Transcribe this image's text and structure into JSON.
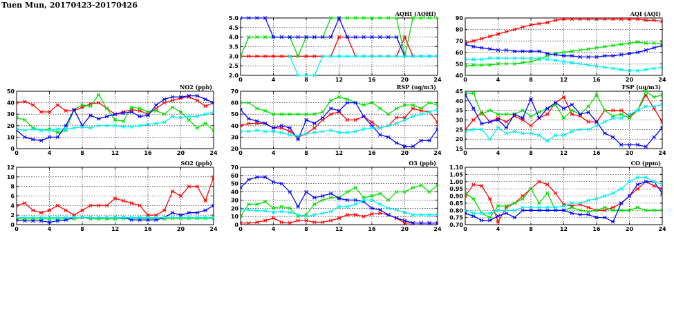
{
  "page_title": "Tuen Mun, 20170423-20170426",
  "colors": {
    "red": "#ff0000",
    "green": "#00dd00",
    "blue": "#0000ff",
    "cyan": "#00eeee"
  },
  "chart_data": [
    {
      "id": "aqhi",
      "type": "line",
      "title": "AQHI (AQHI)",
      "xlim": [
        0,
        24
      ],
      "xticks": [
        0,
        4,
        8,
        12,
        16,
        20,
        24
      ],
      "ylim": [
        2.0,
        5.0
      ],
      "yticks": [
        "2.0",
        "2.5",
        "3.0",
        "3.5",
        "4.0",
        "4.5",
        "5.0"
      ],
      "grid": true,
      "series": [
        {
          "color": "red",
          "values": [
            3,
            3,
            3,
            3,
            3,
            3,
            3,
            3,
            3,
            3,
            3,
            3,
            4,
            4,
            3,
            3,
            3,
            3,
            3,
            3,
            4,
            3,
            3,
            3,
            3
          ]
        },
        {
          "color": "green",
          "values": [
            3,
            4,
            4,
            4,
            4,
            4,
            4,
            3,
            4,
            4,
            4,
            5,
            5,
            5,
            5,
            5,
            5,
            5,
            5,
            5,
            3,
            5,
            5,
            5,
            5
          ]
        },
        {
          "color": "blue",
          "values": [
            5,
            5,
            5,
            5,
            4,
            4,
            4,
            4,
            4,
            4,
            4,
            4,
            5,
            4,
            4,
            4,
            4,
            4,
            4,
            4,
            3,
            3,
            3,
            3,
            3
          ]
        },
        {
          "color": "cyan",
          "values": [
            null,
            null,
            null,
            null,
            null,
            null,
            3,
            2,
            2,
            2,
            3,
            3,
            3,
            3,
            3,
            3,
            3,
            3,
            3,
            3,
            3,
            3,
            3,
            3,
            3
          ]
        }
      ]
    },
    {
      "id": "aqi",
      "type": "line",
      "title": "AQI (AQI)",
      "xlim": [
        0,
        24
      ],
      "xticks": [
        0,
        4,
        8,
        12,
        16,
        20,
        24
      ],
      "ylim": [
        40,
        90
      ],
      "yticks": [
        "40",
        "50",
        "60",
        "70",
        "80",
        "90"
      ],
      "grid": true,
      "series": [
        {
          "color": "red",
          "values": [
            68,
            70,
            72,
            74,
            76,
            78,
            80,
            82,
            84,
            85,
            86,
            88,
            89,
            89,
            89,
            89,
            89,
            89,
            89,
            89,
            89,
            89,
            88,
            88,
            87
          ]
        },
        {
          "color": "green",
          "values": [
            48,
            49,
            49,
            49,
            50,
            50,
            50,
            51,
            52,
            54,
            57,
            59,
            60,
            61,
            62,
            63,
            64,
            65,
            66,
            67,
            68,
            69,
            68,
            68,
            68
          ]
        },
        {
          "color": "blue",
          "values": [
            67,
            65,
            64,
            63,
            62,
            62,
            61,
            61,
            61,
            61,
            59,
            58,
            57,
            57,
            56,
            56,
            56,
            57,
            57,
            58,
            59,
            60,
            62,
            64,
            66
          ]
        },
        {
          "color": "cyan",
          "values": [
            54,
            54,
            54,
            55,
            55,
            55,
            55,
            55,
            55,
            55,
            54,
            53,
            52,
            51,
            50,
            49,
            48,
            47,
            46,
            45,
            44,
            44,
            45,
            46,
            47
          ]
        }
      ]
    },
    {
      "id": "no2",
      "type": "line",
      "title": "NO2 (ppb)",
      "xlim": [
        0,
        24
      ],
      "xticks": [
        0,
        4,
        8,
        12,
        16,
        20,
        24
      ],
      "ylim": [
        0,
        50
      ],
      "yticks": [
        "0",
        "10",
        "20",
        "30",
        "40",
        "50"
      ],
      "grid": true,
      "series": [
        {
          "color": "red",
          "values": [
            40,
            41,
            38,
            32,
            32,
            38,
            33,
            33,
            36,
            39,
            40,
            35,
            30,
            32,
            34,
            33,
            30,
            35,
            40,
            42,
            44,
            45,
            42,
            37,
            40
          ]
        },
        {
          "color": "green",
          "values": [
            27,
            25,
            18,
            16,
            17,
            14,
            16,
            34,
            38,
            37,
            47,
            35,
            25,
            24,
            36,
            35,
            32,
            33,
            30,
            36,
            32,
            25,
            18,
            22,
            16
          ]
        },
        {
          "color": "blue",
          "values": [
            16,
            10,
            8,
            7,
            10,
            10,
            20,
            34,
            20,
            29,
            26,
            28,
            30,
            31,
            32,
            28,
            29,
            38,
            43,
            45,
            45,
            46,
            46,
            43,
            40
          ]
        },
        {
          "color": "cyan",
          "values": [
            17,
            16,
            17,
            16,
            16,
            17,
            17,
            18,
            19,
            18,
            20,
            20,
            20,
            19,
            19,
            20,
            21,
            22,
            23,
            28,
            27,
            28,
            28,
            30,
            32
          ]
        }
      ]
    },
    {
      "id": "rsp",
      "type": "line",
      "title": "RSP (ug/m3)",
      "xlim": [
        0,
        24
      ],
      "xticks": [
        0,
        4,
        8,
        12,
        16,
        20,
        24
      ],
      "ylim": [
        20,
        70
      ],
      "yticks": [
        "20",
        "30",
        "40",
        "50",
        "60",
        "70"
      ],
      "grid": true,
      "series": [
        {
          "color": "red",
          "values": [
            40,
            42,
            42,
            42,
            38,
            38,
            35,
            30,
            33,
            38,
            45,
            50,
            52,
            45,
            45,
            48,
            43,
            38,
            40,
            47,
            47,
            55,
            53,
            52,
            43
          ]
        },
        {
          "color": "green",
          "values": [
            60,
            60,
            55,
            53,
            50,
            50,
            50,
            50,
            50,
            50,
            52,
            62,
            65,
            63,
            60,
            58,
            60,
            55,
            50,
            55,
            58,
            58,
            55,
            60,
            58
          ]
        },
        {
          "color": "blue",
          "values": [
            54,
            46,
            44,
            42,
            38,
            40,
            38,
            28,
            45,
            42,
            47,
            55,
            53,
            60,
            60,
            48,
            40,
            32,
            30,
            25,
            22,
            22,
            27,
            27,
            37
          ]
        },
        {
          "color": "cyan",
          "values": [
            35,
            35,
            36,
            35,
            35,
            34,
            32,
            31,
            33,
            34,
            35,
            36,
            34,
            34,
            35,
            37,
            38,
            38,
            40,
            42,
            45,
            48,
            50,
            52,
            54
          ]
        }
      ]
    },
    {
      "id": "fsp",
      "type": "line",
      "title": "FSP (ug/m3)",
      "xlim": [
        0,
        24
      ],
      "xticks": [
        0,
        4,
        8,
        12,
        16,
        20,
        24
      ],
      "ylim": [
        15,
        45
      ],
      "yticks": [
        "15",
        "20",
        "25",
        "30",
        "35",
        "40",
        "45"
      ],
      "grid": true,
      "series": [
        {
          "color": "red",
          "values": [
            25,
            30,
            34,
            29,
            31,
            29,
            32,
            30,
            27,
            31,
            33,
            39,
            42,
            33,
            32,
            29,
            29,
            35,
            35,
            35,
            32,
            35,
            43,
            36,
            29
          ]
        },
        {
          "color": "green",
          "values": [
            44,
            44,
            33,
            35,
            33,
            33,
            33,
            35,
            32,
            34,
            36,
            38,
            31,
            35,
            33,
            37,
            43,
            35,
            32,
            33,
            31,
            35,
            45,
            42,
            43
          ]
        },
        {
          "color": "blue",
          "values": [
            43,
            36,
            28,
            29,
            30,
            26,
            33,
            31,
            41,
            31,
            36,
            39,
            36,
            38,
            33,
            34,
            29,
            23,
            21,
            17,
            17,
            17,
            16,
            21,
            26
          ]
        },
        {
          "color": "cyan",
          "values": [
            24,
            25,
            25,
            20,
            26,
            23,
            24,
            23,
            23,
            22,
            19,
            22,
            22,
            24,
            25,
            25,
            27,
            29,
            31,
            31,
            33,
            35,
            37,
            37,
            38
          ]
        }
      ]
    },
    {
      "id": "so2",
      "type": "line",
      "title": "SO2 (ppb)",
      "xlim": [
        0,
        24
      ],
      "xticks": [
        0,
        4,
        8,
        12,
        16,
        20,
        24
      ],
      "ylim": [
        0,
        12
      ],
      "yticks": [
        "0",
        "2",
        "4",
        "6",
        "8",
        "10",
        "12"
      ],
      "grid": true,
      "series": [
        {
          "color": "red",
          "values": [
            4,
            4.5,
            3,
            2.5,
            3,
            4,
            3,
            2,
            3,
            4,
            4,
            4,
            5.5,
            5,
            4.5,
            4,
            2,
            2,
            3,
            7,
            6,
            8,
            8,
            5,
            10
          ]
        },
        {
          "color": "green",
          "values": [
            1.2,
            1.2,
            1.2,
            1.2,
            1.2,
            1.2,
            1.2,
            1.2,
            1.5,
            1.2,
            1.2,
            1.2,
            1.2,
            1.3,
            1.3,
            1.3,
            1.3,
            1.2,
            1.2,
            1.3,
            1.3,
            1.3,
            1.3,
            1.3,
            1.3
          ]
        },
        {
          "color": "blue",
          "values": [
            1,
            0.8,
            0.8,
            0.8,
            0.5,
            0.8,
            1,
            1.5,
            1.5,
            1.5,
            1.5,
            1.5,
            1.5,
            1.5,
            1,
            1,
            1,
            1,
            1.5,
            2.5,
            2,
            2.5,
            2.5,
            3,
            4
          ]
        },
        {
          "color": "cyan",
          "values": [
            1.5,
            1.5,
            1.5,
            1.5,
            1.5,
            1.5,
            1.5,
            1.5,
            1.5,
            1.5,
            1.5,
            1.5,
            1.5,
            1.5,
            1.5,
            1.5,
            1.5,
            1.5,
            1.5,
            1.5,
            1.5,
            1.5,
            1.5,
            1.5,
            1.5
          ]
        }
      ]
    },
    {
      "id": "o3",
      "type": "line",
      "title": "O3 (ppb)",
      "xlim": [
        0,
        24
      ],
      "xticks": [
        0,
        4,
        8,
        12,
        16,
        20,
        24
      ],
      "ylim": [
        0,
        70
      ],
      "yticks": [
        "0",
        "10",
        "20",
        "30",
        "40",
        "50",
        "60",
        "70"
      ],
      "grid": true,
      "series": [
        {
          "color": "red",
          "values": [
            2,
            2,
            3,
            5,
            8,
            3,
            2,
            5,
            5,
            3,
            3,
            5,
            8,
            12,
            12,
            10,
            13,
            14,
            12,
            8,
            2,
            2,
            2,
            2,
            2
          ]
        },
        {
          "color": "green",
          "values": [
            10,
            25,
            25,
            28,
            20,
            22,
            20,
            10,
            12,
            25,
            30,
            33,
            33,
            40,
            45,
            33,
            35,
            38,
            30,
            40,
            40,
            45,
            48,
            40,
            48
          ]
        },
        {
          "color": "blue",
          "values": [
            45,
            55,
            58,
            58,
            52,
            50,
            40,
            22,
            40,
            33,
            35,
            38,
            32,
            30,
            30,
            28,
            20,
            18,
            12,
            8,
            5,
            2,
            2,
            2,
            2
          ]
        },
        {
          "color": "cyan",
          "values": [
            18,
            18,
            17,
            17,
            15,
            16,
            15,
            12,
            10,
            12,
            14,
            16,
            22,
            22,
            25,
            30,
            30,
            25,
            20,
            18,
            15,
            12,
            12,
            12,
            12
          ]
        }
      ]
    },
    {
      "id": "co",
      "type": "line",
      "title": "CO (ppm)",
      "xlim": [
        0,
        24
      ],
      "xticks": [
        0,
        4,
        8,
        12,
        16,
        20,
        24
      ],
      "ylim": [
        0.7,
        1.1
      ],
      "yticks": [
        "0.70",
        "0.75",
        "0.80",
        "0.85",
        "0.90",
        "0.95",
        "1.00",
        "1.05",
        "1.10"
      ],
      "grid": true,
      "series": [
        {
          "color": "red",
          "values": [
            0.9,
            0.98,
            0.97,
            0.88,
            0.72,
            0.82,
            0.85,
            0.9,
            0.95,
            1.0,
            0.98,
            0.92,
            0.84,
            0.83,
            0.84,
            0.82,
            0.8,
            0.8,
            0.82,
            0.85,
            0.9,
            0.95,
            1.0,
            0.97,
            0.95
          ]
        },
        {
          "color": "green",
          "values": [
            0.92,
            0.88,
            0.78,
            0.75,
            0.83,
            0.83,
            0.85,
            0.88,
            0.95,
            0.85,
            0.92,
            0.8,
            0.8,
            0.82,
            0.8,
            0.79,
            0.8,
            0.82,
            0.8,
            0.8,
            0.8,
            0.82,
            0.8,
            0.8,
            0.8
          ]
        },
        {
          "color": "blue",
          "values": [
            0.78,
            0.76,
            0.73,
            0.73,
            0.76,
            0.78,
            0.75,
            0.8,
            0.8,
            0.8,
            0.8,
            0.8,
            0.8,
            0.78,
            0.77,
            0.77,
            0.75,
            0.75,
            0.72,
            0.85,
            0.9,
            0.98,
            1.0,
            1.0,
            0.92
          ]
        },
        {
          "color": "cyan",
          "values": [
            0.8,
            0.78,
            0.78,
            0.78,
            0.8,
            0.8,
            0.8,
            0.82,
            0.82,
            0.82,
            0.82,
            0.82,
            0.83,
            0.85,
            0.85,
            0.87,
            0.88,
            0.9,
            0.92,
            0.95,
            1.0,
            1.03,
            1.03,
            1.0,
            0.98
          ]
        }
      ]
    }
  ]
}
